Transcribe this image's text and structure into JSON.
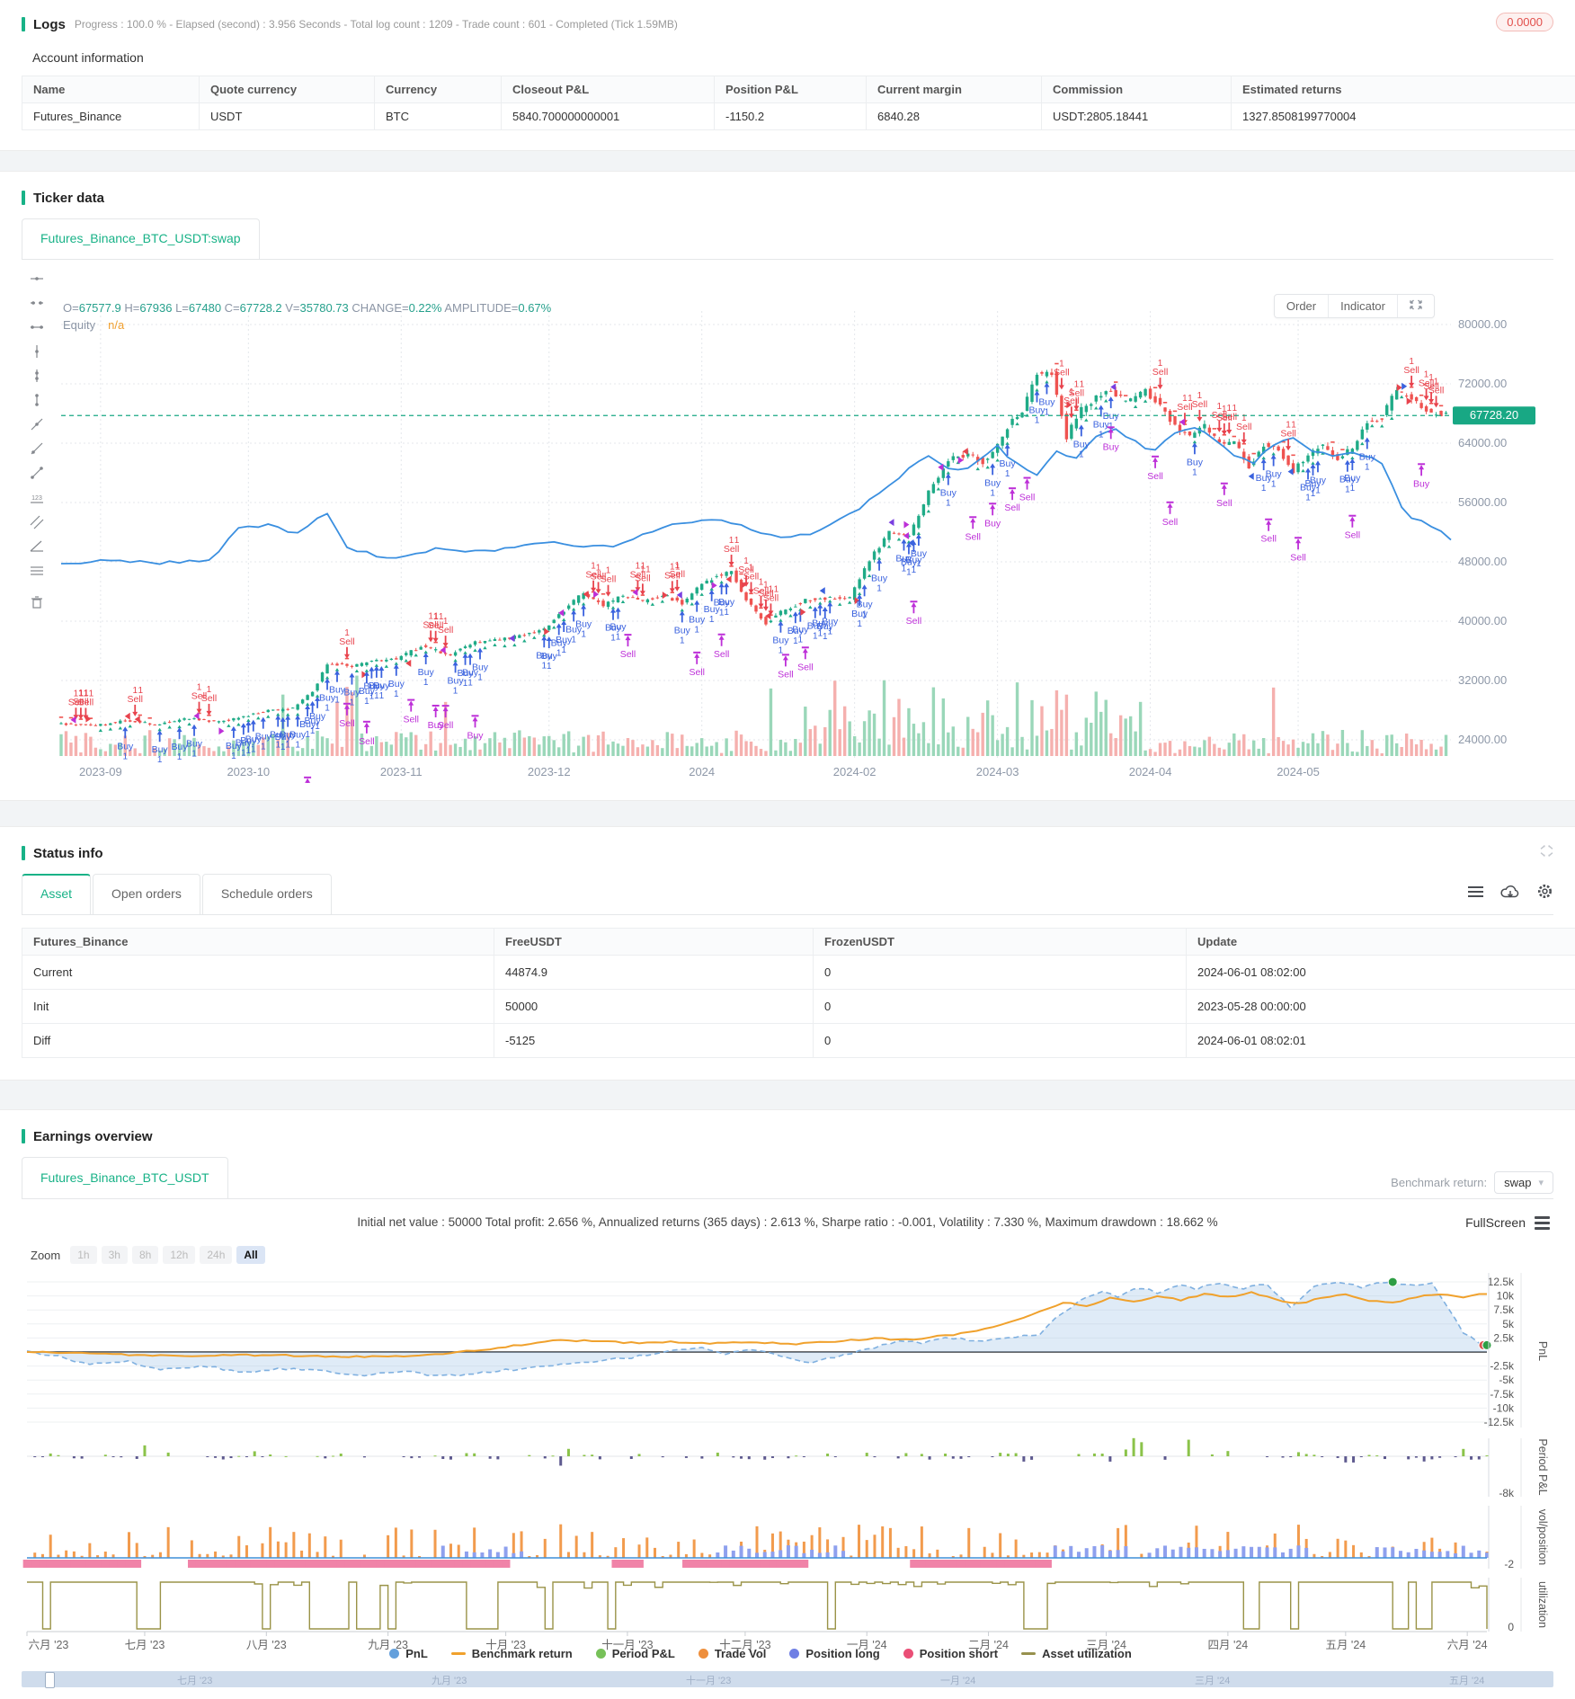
{
  "logs": {
    "title": "Logs",
    "progress_text": "Progress : 100.0 % - Elapsed (second) : 3.956  Seconds - Total log count : 1209 - Trade count : 601 - Completed (Tick 1.59MB)",
    "badge": "0.0000",
    "subtitle": "Account information",
    "account_table": {
      "headers": [
        "Name",
        "Quote currency",
        "Currency",
        "Closeout P&L",
        "Position P&L",
        "Current margin",
        "Commission",
        "Estimated returns"
      ],
      "rows": [
        [
          "Futures_Binance",
          "USDT",
          "BTC",
          "5840.700000000001",
          "-1150.2",
          "6840.28",
          "USDT:2805.18441",
          "1327.8508199770004"
        ]
      ]
    }
  },
  "ticker": {
    "title": "Ticker data",
    "tab": "Futures_Binance_BTC_USDT:swap",
    "ohlc_parts": [
      [
        "O=",
        "67577.9"
      ],
      [
        "H=",
        "67936"
      ],
      [
        "L=",
        "67480"
      ],
      [
        "C=",
        "67728.2"
      ],
      [
        "V=",
        "35780.73"
      ],
      [
        "CHANGE=",
        "0.22%"
      ],
      [
        "AMPLITUDE=",
        "0.67%"
      ]
    ],
    "equity_label": "Equity",
    "equity_value": "n/a",
    "order_button": "Order",
    "indicator_button": "Indicator",
    "toolbar_icons": [
      "horizontal-line-icon",
      "horizontal-ray-icon",
      "extended-line-icon",
      "vertical-line-icon",
      "cross-line-icon",
      "segment-icon",
      "trend-line-icon",
      "ray-line-icon",
      "arrow-line-icon",
      "price-measure-icon",
      "parallel-channel-icon",
      "angle-icon",
      "waves-icon",
      "delete-icon"
    ]
  },
  "status": {
    "title": "Status info",
    "tabs": [
      "Asset",
      "Open orders",
      "Schedule orders"
    ],
    "active_tab": "Asset",
    "toolbar_icons": [
      "list-icon",
      "cloud-download-icon",
      "gear-icon"
    ],
    "table": {
      "headers": [
        "Futures_Binance",
        "FreeUSDT",
        "FrozenUSDT",
        "Update"
      ],
      "rows": [
        {
          "cells": [
            "Current",
            "44874.9",
            "0",
            "2024-06-01 08:02:00"
          ],
          "row_style": "link-first"
        },
        {
          "cells": [
            "Init",
            "50000",
            "0",
            "2023-05-28 00:00:00"
          ],
          "row_style": ""
        },
        {
          "cells": [
            "Diff",
            "-5125",
            "0",
            "2024-06-01 08:02:01"
          ],
          "row_style": "negative"
        }
      ]
    }
  },
  "earnings": {
    "title": "Earnings overview",
    "tab": "Futures_Binance_BTC_USDT",
    "benchmark_label": "Benchmark return:",
    "benchmark_value": "swap",
    "stats_text": "Initial net value : 50000 Total profit: 2.656 %, Annualized returns (365 days) : 2.613 %, Sharpe ratio : -0.001, Volatility : 7.330 %, Maximum drawdown : 18.662 %",
    "fullscreen_label": "FullScreen",
    "zoom_label": "Zoom",
    "zoom_buttons": [
      "1h",
      "3h",
      "8h",
      "12h",
      "24h",
      "All"
    ],
    "zoom_active": "All",
    "legend": [
      {
        "label": "PnL",
        "color": "#64a0dc",
        "marker": "dot"
      },
      {
        "label": "Benchmark return",
        "color": "#f0a12c",
        "marker": "line"
      },
      {
        "label": "Period P&L",
        "color": "#77c159",
        "marker": "dot"
      },
      {
        "label": "Trade Vol",
        "color": "#ee8f3c",
        "marker": "dot"
      },
      {
        "label": "Position long",
        "color": "#6f7fe4",
        "marker": "dot"
      },
      {
        "label": "Position short",
        "color": "#ea4f76",
        "marker": "dot"
      },
      {
        "label": "Asset utilization",
        "color": "#97914d",
        "marker": "line"
      }
    ],
    "navigator_labels": [
      "七月 '23",
      "九月 '23",
      "十一月 '23",
      "一月 '24",
      "三月 '24",
      "五月 '24"
    ]
  },
  "chart_data": [
    {
      "type": "candlestick",
      "symbol": "Futures_Binance_BTC_USDT:swap",
      "x_labels": [
        "2023-09",
        "2023-10",
        "2023-11",
        "2023-12",
        "2024",
        "2024-02",
        "2024-03",
        "2024-04",
        "2024-05"
      ],
      "x_label_days": [
        8,
        38,
        69,
        99,
        130,
        161,
        190,
        221,
        251
      ],
      "total_days": 282,
      "y_ticks": [
        80000,
        72000,
        64000,
        56000,
        48000,
        40000,
        32000,
        24000
      ],
      "current_price": "67728.20",
      "last_ohlc": {
        "open": 67577.9,
        "high": 67936,
        "low": 67480,
        "close": 67728.2,
        "volume": 35780.73,
        "change_pct": 0.22,
        "amplitude_pct": 0.67
      },
      "price_anchors": [
        [
          0,
          26200
        ],
        [
          8,
          25900
        ],
        [
          14,
          26600
        ],
        [
          20,
          26100
        ],
        [
          27,
          26900
        ],
        [
          33,
          26400
        ],
        [
          38,
          27200
        ],
        [
          43,
          27900
        ],
        [
          48,
          28200
        ],
        [
          52,
          30500
        ],
        [
          55,
          34200
        ],
        [
          60,
          34000
        ],
        [
          65,
          34600
        ],
        [
          69,
          34900
        ],
        [
          74,
          36600
        ],
        [
          80,
          35500
        ],
        [
          85,
          37200
        ],
        [
          90,
          37400
        ],
        [
          95,
          38200
        ],
        [
          99,
          38900
        ],
        [
          103,
          41500
        ],
        [
          107,
          43800
        ],
        [
          111,
          42100
        ],
        [
          115,
          43400
        ],
        [
          119,
          42600
        ],
        [
          123,
          43600
        ],
        [
          127,
          42300
        ],
        [
          130,
          44400
        ],
        [
          134,
          46200
        ],
        [
          137,
          46600
        ],
        [
          140,
          42800
        ],
        [
          144,
          39800
        ],
        [
          148,
          41600
        ],
        [
          152,
          42800
        ],
        [
          156,
          43100
        ],
        [
          161,
          43100
        ],
        [
          165,
          48200
        ],
        [
          169,
          52000
        ],
        [
          173,
          51300
        ],
        [
          177,
          57300
        ],
        [
          181,
          61800
        ],
        [
          185,
          62400
        ],
        [
          188,
          61500
        ],
        [
          190,
          62800
        ],
        [
          193,
          66200
        ],
        [
          196,
          68300
        ],
        [
          199,
          73200
        ],
        [
          202,
          73600
        ],
        [
          205,
          64900
        ],
        [
          208,
          68600
        ],
        [
          211,
          70200
        ],
        [
          214,
          71300
        ],
        [
          217,
          69400
        ],
        [
          221,
          71000
        ],
        [
          224,
          69200
        ],
        [
          227,
          66300
        ],
        [
          230,
          64800
        ],
        [
          233,
          66400
        ],
        [
          236,
          63800
        ],
        [
          239,
          64300
        ],
        [
          242,
          60800
        ],
        [
          245,
          63900
        ],
        [
          248,
          62900
        ],
        [
          251,
          60300
        ],
        [
          254,
          62400
        ],
        [
          257,
          63900
        ],
        [
          260,
          61800
        ],
        [
          263,
          63400
        ],
        [
          266,
          66800
        ],
        [
          269,
          67500
        ],
        [
          272,
          71300
        ],
        [
          275,
          69800
        ],
        [
          278,
          68300
        ],
        [
          282,
          67728
        ]
      ],
      "equity_anchors": [
        [
          0,
          47600
        ],
        [
          10,
          48300
        ],
        [
          20,
          47900
        ],
        [
          30,
          48100
        ],
        [
          36,
          52400
        ],
        [
          42,
          52900
        ],
        [
          48,
          51800
        ],
        [
          54,
          54600
        ],
        [
          58,
          50100
        ],
        [
          64,
          48700
        ],
        [
          69,
          48400
        ],
        [
          76,
          49900
        ],
        [
          84,
          49300
        ],
        [
          92,
          49800
        ],
        [
          99,
          50600
        ],
        [
          106,
          49900
        ],
        [
          113,
          50300
        ],
        [
          120,
          52100
        ],
        [
          127,
          53400
        ],
        [
          133,
          53900
        ],
        [
          140,
          52400
        ],
        [
          147,
          51300
        ],
        [
          154,
          52100
        ],
        [
          161,
          54800
        ],
        [
          166,
          57400
        ],
        [
          171,
          59900
        ],
        [
          176,
          62400
        ],
        [
          181,
          59900
        ],
        [
          186,
          61400
        ],
        [
          190,
          63600
        ],
        [
          194,
          61100
        ],
        [
          198,
          59900
        ],
        [
          202,
          63100
        ],
        [
          206,
          61900
        ],
        [
          210,
          64900
        ],
        [
          214,
          66100
        ],
        [
          218,
          64100
        ],
        [
          222,
          62900
        ],
        [
          226,
          65400
        ],
        [
          230,
          66200
        ],
        [
          234,
          64300
        ],
        [
          238,
          62400
        ],
        [
          242,
          61300
        ],
        [
          246,
          63900
        ],
        [
          250,
          64800
        ],
        [
          254,
          63100
        ],
        [
          258,
          62400
        ],
        [
          262,
          62900
        ],
        [
          266,
          61900
        ],
        [
          269,
          60700
        ],
        [
          271,
          56200
        ],
        [
          274,
          54100
        ],
        [
          277,
          53300
        ],
        [
          279,
          52400
        ],
        [
          282,
          50900
        ]
      ],
      "colors": {
        "up": "#1fab87",
        "down": "#ef5350",
        "sell": "#e8434d",
        "buy": "#3a62de",
        "alt": "#bd2fd8",
        "equity": "#3a8fe0",
        "price_line": "#18a884",
        "vol_up": "#9ad7b9",
        "vol_down": "#f5b0ae"
      }
    },
    {
      "type": "multi-panel-line",
      "panels": [
        "PnL",
        "Period P&L",
        "vol/position",
        "utilization"
      ],
      "pnl_y_ticks": [
        "12.5k",
        "10k",
        "7.5k",
        "5k",
        "2.5k",
        "-2.5k",
        "-5k",
        "-7.5k",
        "-10k",
        "-12.5k"
      ],
      "pnl_y_tick_values": [
        12.5,
        10,
        7.5,
        5,
        2.5,
        -2.5,
        -5,
        -7.5,
        -10,
        -12.5
      ],
      "period_y_tick": "-8k",
      "volpos_y_tick": "-2",
      "utilization_y_tick": "0",
      "x_labels": [
        "六月 '23",
        "七月 '23",
        "八月 '23",
        "九月 '23",
        "十月 '23",
        "十一月 '23",
        "十二月 '23",
        "一月 '24",
        "二月 '24",
        "三月 '24",
        "四月 '24",
        "五月 '24",
        "六月 '24"
      ],
      "x_label_days": [
        0,
        30,
        61,
        92,
        122,
        153,
        183,
        214,
        245,
        275,
        306,
        336,
        367
      ],
      "total_days": 372,
      "pnl_anchors_k": [
        [
          0,
          0
        ],
        [
          8,
          -0.8
        ],
        [
          15,
          -2.2
        ],
        [
          25,
          -1.6
        ],
        [
          35,
          -3.1
        ],
        [
          45,
          -2.4
        ],
        [
          55,
          -3.6
        ],
        [
          65,
          -2.9
        ],
        [
          75,
          -3.3
        ],
        [
          85,
          -4.1
        ],
        [
          95,
          -3.4
        ],
        [
          105,
          -4.3
        ],
        [
          115,
          -3.8
        ],
        [
          125,
          -3.0
        ],
        [
          135,
          -2.4
        ],
        [
          145,
          -1.7
        ],
        [
          155,
          -0.9
        ],
        [
          165,
          0.4
        ],
        [
          172,
          0.9
        ],
        [
          178,
          -0.4
        ],
        [
          185,
          0.6
        ],
        [
          192,
          -0.9
        ],
        [
          200,
          -1.8
        ],
        [
          208,
          -0.6
        ],
        [
          215,
          0.6
        ],
        [
          222,
          2.1
        ],
        [
          228,
          1.5
        ],
        [
          235,
          2.6
        ],
        [
          242,
          1.8
        ],
        [
          250,
          2.4
        ],
        [
          258,
          3.2
        ],
        [
          263,
          6.5
        ],
        [
          268,
          9.0
        ],
        [
          273,
          10.8
        ],
        [
          278,
          9.8
        ],
        [
          283,
          11.6
        ],
        [
          288,
          10.6
        ],
        [
          293,
          12.0
        ],
        [
          298,
          11.2
        ],
        [
          303,
          12.4
        ],
        [
          310,
          11.4
        ],
        [
          316,
          12.2
        ],
        [
          322,
          7.8
        ],
        [
          328,
          11.8
        ],
        [
          334,
          12.4
        ],
        [
          340,
          11.6
        ],
        [
          346,
          12.5
        ],
        [
          352,
          11.9
        ],
        [
          358,
          12.3
        ],
        [
          362,
          8.0
        ],
        [
          366,
          3.2
        ],
        [
          370,
          1.8
        ],
        [
          372,
          1.4
        ]
      ],
      "benchmark_anchors_k": [
        [
          0,
          0
        ],
        [
          20,
          -0.4
        ],
        [
          40,
          -0.7
        ],
        [
          60,
          -0.5
        ],
        [
          80,
          -0.9
        ],
        [
          100,
          -0.6
        ],
        [
          115,
          0.3
        ],
        [
          125,
          1.2
        ],
        [
          135,
          2.2
        ],
        [
          145,
          1.9
        ],
        [
          155,
          1.6
        ],
        [
          165,
          1.8
        ],
        [
          175,
          1.5
        ],
        [
          185,
          1.8
        ],
        [
          195,
          1.4
        ],
        [
          205,
          1.9
        ],
        [
          215,
          2.4
        ],
        [
          225,
          2.2
        ],
        [
          235,
          3.0
        ],
        [
          245,
          4.2
        ],
        [
          252,
          5.8
        ],
        [
          258,
          7.2
        ],
        [
          264,
          8.8
        ],
        [
          270,
          8.2
        ],
        [
          276,
          9.6
        ],
        [
          282,
          9.0
        ],
        [
          288,
          10.0
        ],
        [
          294,
          9.3
        ],
        [
          300,
          10.3
        ],
        [
          306,
          9.8
        ],
        [
          312,
          10.6
        ],
        [
          318,
          9.4
        ],
        [
          324,
          8.6
        ],
        [
          330,
          9.6
        ],
        [
          336,
          10.4
        ],
        [
          342,
          9.2
        ],
        [
          348,
          8.8
        ],
        [
          354,
          9.8
        ],
        [
          360,
          10.4
        ],
        [
          366,
          9.8
        ],
        [
          372,
          10.4
        ]
      ],
      "colors": {
        "pnl": "#7fb0e0",
        "pnl_fill": "rgba(150,190,230,0.30)",
        "benchmark": "#f0a12c",
        "period_up": "#8bc34a",
        "period_down": "#5e5a8f",
        "trade_vol": "#f29b4d",
        "pos_long": "#8ea0ee",
        "pos_short": "#f083a8",
        "baseline": "#3f8fd8",
        "utilization": "#9a9348",
        "end_dot": "#2e9e44"
      }
    }
  ]
}
